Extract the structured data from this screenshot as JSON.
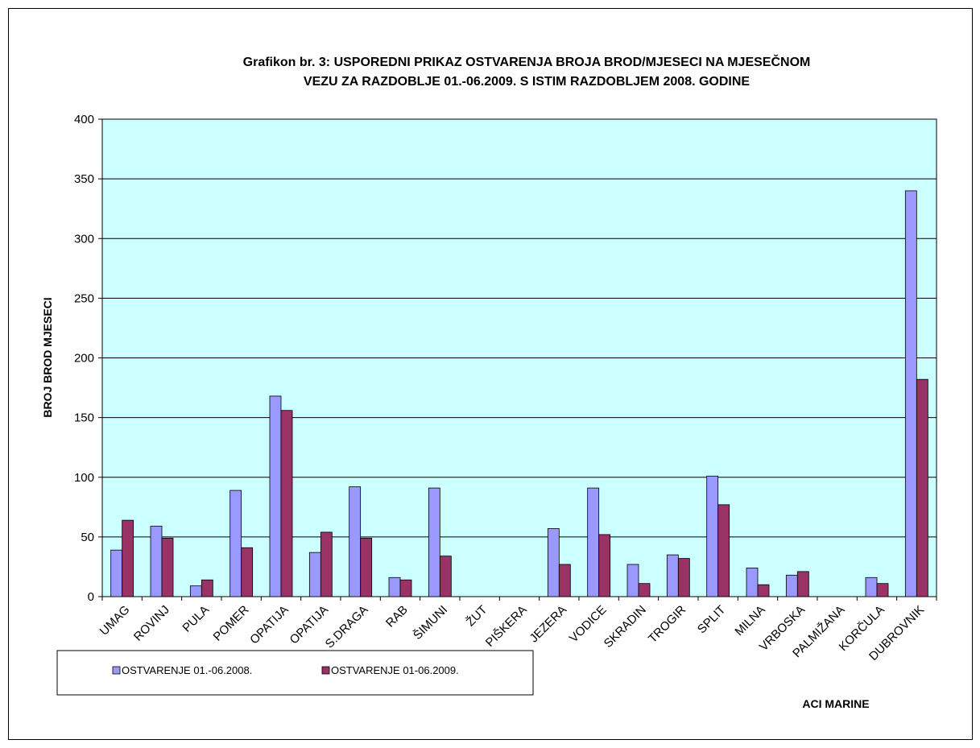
{
  "chart_data": {
    "type": "bar",
    "title_lines": [
      "Grafikon br. 3: USPOREDNI PRIKAZ OSTVARENJA BROJA BROD/MJESECI NA MJESEČNOM",
      "VEZU ZA RAZDOBLJE 01.-06.2009. S ISTIM RAZDOBLJEM 2008. GODINE"
    ],
    "ylabel": "BROJ BROD MJESECI",
    "xlabel": "ACI MARINE",
    "ylim": [
      0,
      400
    ],
    "yticks": [
      0,
      50,
      100,
      150,
      200,
      250,
      300,
      350,
      400
    ],
    "grid": true,
    "plot_background": "#ccffff",
    "legend_position": "bottom-left",
    "categories": [
      "UMAG",
      "ROVINJ",
      "PULA",
      "POMER",
      "OPATIJA",
      "OPATIJA",
      "S.DRAGA",
      "RAB",
      "ŠIMUNI",
      "ŽUT",
      "PIŠKERA",
      "JEZERA",
      "VODICE",
      "SKRADIN",
      "TROGIR",
      "SPLIT",
      "MILNA",
      "VRBOSKA",
      "PALMIŽANA",
      "KORČULA",
      "DUBROVNIK"
    ],
    "series": [
      {
        "name": "OSTVARENJE 01.-06.2008.",
        "color": "#9999ff",
        "values": [
          39,
          59,
          9,
          89,
          168,
          37,
          92,
          16,
          91,
          0,
          0,
          57,
          91,
          27,
          35,
          101,
          24,
          18,
          0,
          16,
          340
        ]
      },
      {
        "name": "OSTVARENJE 01-06.2009.",
        "color": "#993366",
        "values": [
          64,
          49,
          14,
          41,
          156,
          54,
          49,
          14,
          34,
          0,
          0,
          27,
          52,
          11,
          32,
          77,
          10,
          21,
          0,
          11,
          182
        ]
      }
    ]
  }
}
